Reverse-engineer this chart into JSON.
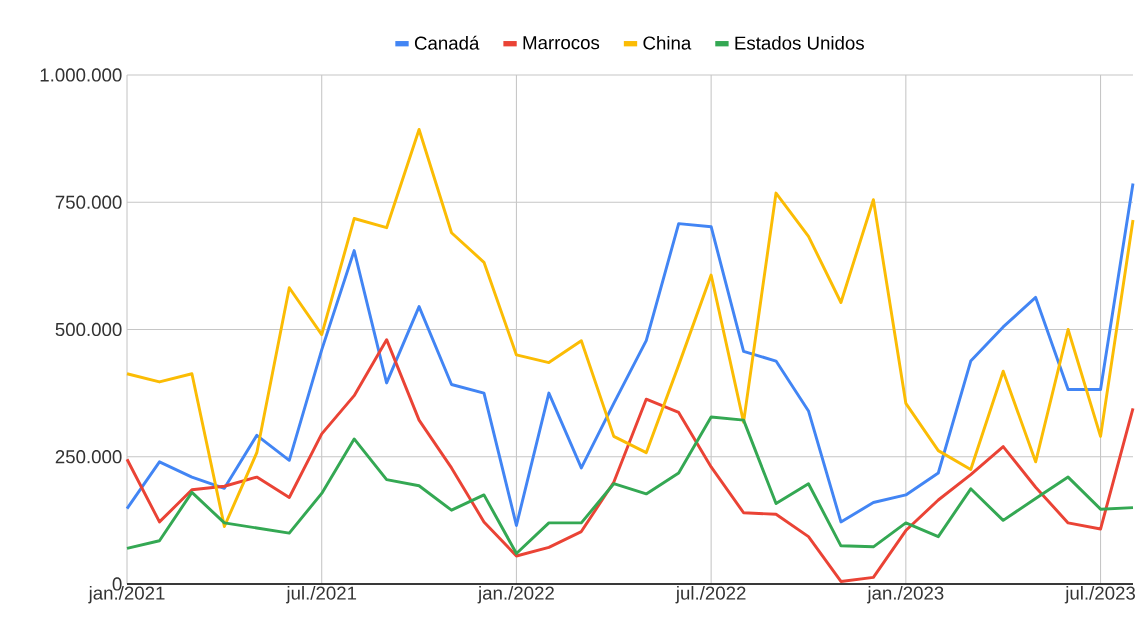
{
  "chart_data": {
    "type": "line",
    "x": [
      "2021-01",
      "2021-02",
      "2021-03",
      "2021-04",
      "2021-05",
      "2021-06",
      "2021-07",
      "2021-08",
      "2021-09",
      "2021-10",
      "2021-11",
      "2021-12",
      "2022-01",
      "2022-02",
      "2022-03",
      "2022-04",
      "2022-05",
      "2022-06",
      "2022-07",
      "2022-08",
      "2022-09",
      "2022-10",
      "2022-11",
      "2022-12",
      "2023-01",
      "2023-02",
      "2023-03",
      "2023-04",
      "2023-05",
      "2023-06",
      "2023-07",
      "2023-08"
    ],
    "xlim": [
      "2021-01",
      "2023-08"
    ],
    "xticks": [
      {
        "value": "2021-01",
        "label": "jan./2021"
      },
      {
        "value": "2021-07",
        "label": "jul./2021"
      },
      {
        "value": "2022-01",
        "label": "jan./2022"
      },
      {
        "value": "2022-07",
        "label": "jul./2022"
      },
      {
        "value": "2023-01",
        "label": "jan./2023"
      },
      {
        "value": "2023-07",
        "label": "jul./2023"
      }
    ],
    "ylim": [
      0,
      1000000
    ],
    "yticks": [
      {
        "value": 0,
        "label": "0"
      },
      {
        "value": 250000,
        "label": "250.000"
      },
      {
        "value": 500000,
        "label": "500.000"
      },
      {
        "value": 750000,
        "label": "750.000"
      },
      {
        "value": 1000000,
        "label": "1.000.000"
      }
    ],
    "grid": true,
    "legend": "top",
    "marker": "none",
    "line_style": "solid",
    "series": [
      {
        "name": "Canadá",
        "color": "#4285f4",
        "values": [
          148000,
          240000,
          210000,
          188000,
          292000,
          243000,
          460000,
          655000,
          395000,
          545000,
          392000,
          375000,
          115000,
          375000,
          228000,
          355000,
          478000,
          708000,
          702000,
          457000,
          438000,
          340000,
          122000,
          160000,
          175000,
          218000,
          438000,
          505000,
          563000,
          382000,
          382000,
          787000
        ]
      },
      {
        "name": "Marrocos",
        "color": "#ea4335",
        "values": [
          245000,
          122000,
          185000,
          192000,
          210000,
          170000,
          295000,
          370000,
          480000,
          322000,
          228000,
          122000,
          55000,
          72000,
          103000,
          200000,
          363000,
          337000,
          230000,
          140000,
          137000,
          93000,
          5000,
          13000,
          105000,
          165000,
          215000,
          270000,
          190000,
          120000,
          108000,
          345000
        ]
      },
      {
        "name": "China",
        "color": "#fbbc04",
        "values": [
          413000,
          397000,
          413000,
          113000,
          258000,
          582000,
          490000,
          718000,
          700000,
          893000,
          690000,
          632000,
          450000,
          435000,
          478000,
          290000,
          258000,
          430000,
          607000,
          318000,
          768000,
          683000,
          553000,
          755000,
          355000,
          262000,
          225000,
          418000,
          240000,
          500000,
          290000,
          715000
        ]
      },
      {
        "name": "Estados Unidos",
        "color": "#34a853",
        "values": [
          70000,
          85000,
          180000,
          120000,
          110000,
          100000,
          178000,
          285000,
          205000,
          193000,
          145000,
          175000,
          60000,
          120000,
          120000,
          197000,
          177000,
          218000,
          328000,
          322000,
          158000,
          197000,
          75000,
          73000,
          120000,
          93000,
          187000,
          125000,
          168000,
          210000,
          147000,
          150000
        ]
      }
    ]
  }
}
